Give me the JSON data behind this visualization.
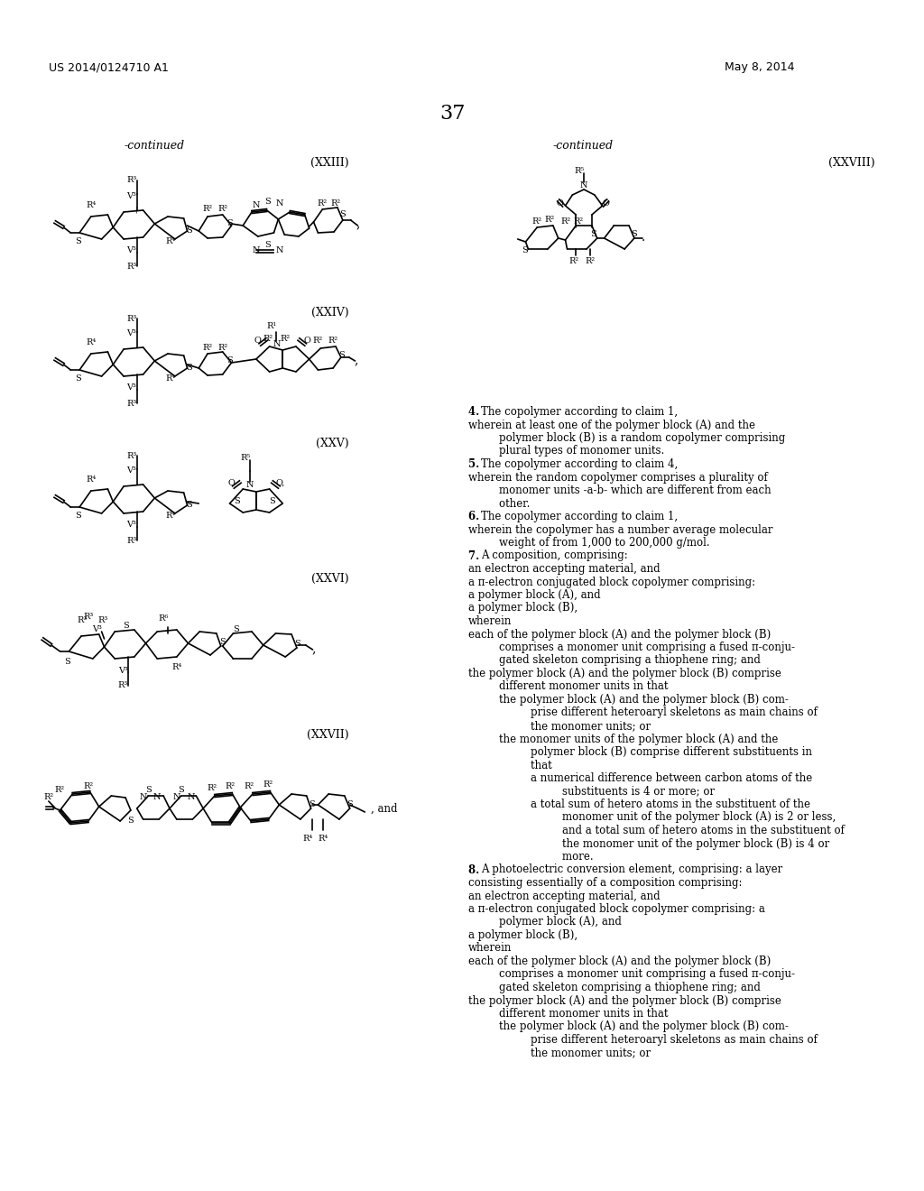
{
  "page_header_left": "US 2014/0124710 A1",
  "page_header_right": "May 8, 2014",
  "page_number": "37",
  "background_color": "#ffffff",
  "text_color": "#000000",
  "font_size_header": 9,
  "font_size_body": 8.5,
  "font_size_page_num": 16,
  "left_continued": "-continued",
  "right_continued": "-continued",
  "label_XXIII": "(XXIII)",
  "label_XXIV": "(XXIV)",
  "label_XXV": "(XXV)",
  "label_XXVI": "(XXVI)",
  "label_XXVII": "(XXVII)",
  "label_XXVIII": "(XXVIII)",
  "right_text": [
    {
      "text": "4. The copolymer according to claim 1,",
      "bold_up_to": 1,
      "indent": 0
    },
    {
      "text": "wherein at least one of the polymer block (A) and the",
      "indent": 0
    },
    {
      "text": "    polymer block (B) is a random copolymer comprising",
      "indent": 1
    },
    {
      "text": "    plural types of monomer units.",
      "indent": 1
    },
    {
      "text": "5. The copolymer according to claim 4,",
      "bold_up_to": 1,
      "indent": 0
    },
    {
      "text": "wherein the random copolymer comprises a plurality of",
      "indent": 0
    },
    {
      "text": "    monomer units -a-b- which are different from each",
      "indent": 1
    },
    {
      "text": "    other.",
      "indent": 1
    },
    {
      "text": "6. The copolymer according to claim 1,",
      "bold_up_to": 1,
      "indent": 0
    },
    {
      "text": "wherein the copolymer has a number average molecular",
      "indent": 0
    },
    {
      "text": "    weight of from 1,000 to 200,000 g/mol.",
      "indent": 1
    },
    {
      "text": "7. A composition, comprising:",
      "bold_up_to": 1,
      "indent": 0
    },
    {
      "text": "an electron accepting material, and",
      "indent": 0
    },
    {
      "text": "a π-electron conjugated block copolymer comprising:",
      "indent": 0
    },
    {
      "text": "a polymer block (A), and",
      "indent": 0
    },
    {
      "text": "a polymer block (B),",
      "indent": 0
    },
    {
      "text": "wherein",
      "indent": 0
    },
    {
      "text": "each of the polymer block (A) and the polymer block (B)",
      "indent": 0
    },
    {
      "text": "    comprises a monomer unit comprising a fused π-conju-",
      "indent": 1
    },
    {
      "text": "    gated skeleton comprising a thiophene ring; and",
      "indent": 1
    },
    {
      "text": "the polymer block (A) and the polymer block (B) comprise",
      "indent": 0
    },
    {
      "text": "    different monomer units in that",
      "indent": 1
    },
    {
      "text": "    the polymer block (A) and the polymer block (B) com-",
      "indent": 1
    },
    {
      "text": "        prise different heteroaryl skeletons as main chains of",
      "indent": 2
    },
    {
      "text": "        the monomer units; or",
      "indent": 2
    },
    {
      "text": "    the monomer units of the polymer block (A) and the",
      "indent": 1
    },
    {
      "text": "        polymer block (B) comprise different substituents in",
      "indent": 2
    },
    {
      "text": "        that",
      "indent": 2
    },
    {
      "text": "        a numerical difference between carbon atoms of the",
      "indent": 2
    },
    {
      "text": "            substituents is 4 or more; or",
      "indent": 3
    },
    {
      "text": "        a total sum of hetero atoms in the substituent of the",
      "indent": 2
    },
    {
      "text": "            monomer unit of the polymer block (A) is 2 or less,",
      "indent": 3
    },
    {
      "text": "            and a total sum of hetero atoms in the substituent of",
      "indent": 3
    },
    {
      "text": "            the monomer unit of the polymer block (B) is 4 or",
      "indent": 3
    },
    {
      "text": "            more.",
      "indent": 3
    },
    {
      "text": "8. A photoelectric conversion element, comprising: a layer",
      "bold_up_to": 1,
      "indent": 0
    },
    {
      "text": "consisting essentially of a composition comprising:",
      "indent": 0
    },
    {
      "text": "an electron accepting material, and",
      "indent": 0
    },
    {
      "text": "a π-electron conjugated block copolymer comprising: a",
      "indent": 0
    },
    {
      "text": "    polymer block (A), and",
      "indent": 1
    },
    {
      "text": "a polymer block (B),",
      "indent": 0
    },
    {
      "text": "wherein",
      "indent": 0
    },
    {
      "text": "each of the polymer block (A) and the polymer block (B)",
      "indent": 0
    },
    {
      "text": "    comprises a monomer unit comprising a fused π-conju-",
      "indent": 1
    },
    {
      "text": "    gated skeleton comprising a thiophene ring; and",
      "indent": 1
    },
    {
      "text": "the polymer block (A) and the polymer block (B) comprise",
      "indent": 0
    },
    {
      "text": "    different monomer units in that",
      "indent": 1
    },
    {
      "text": "    the polymer block (A) and the polymer block (B) com-",
      "indent": 1
    },
    {
      "text": "        prise different heteroaryl skeletons as main chains of",
      "indent": 2
    },
    {
      "text": "        the monomer units; or",
      "indent": 2
    }
  ]
}
